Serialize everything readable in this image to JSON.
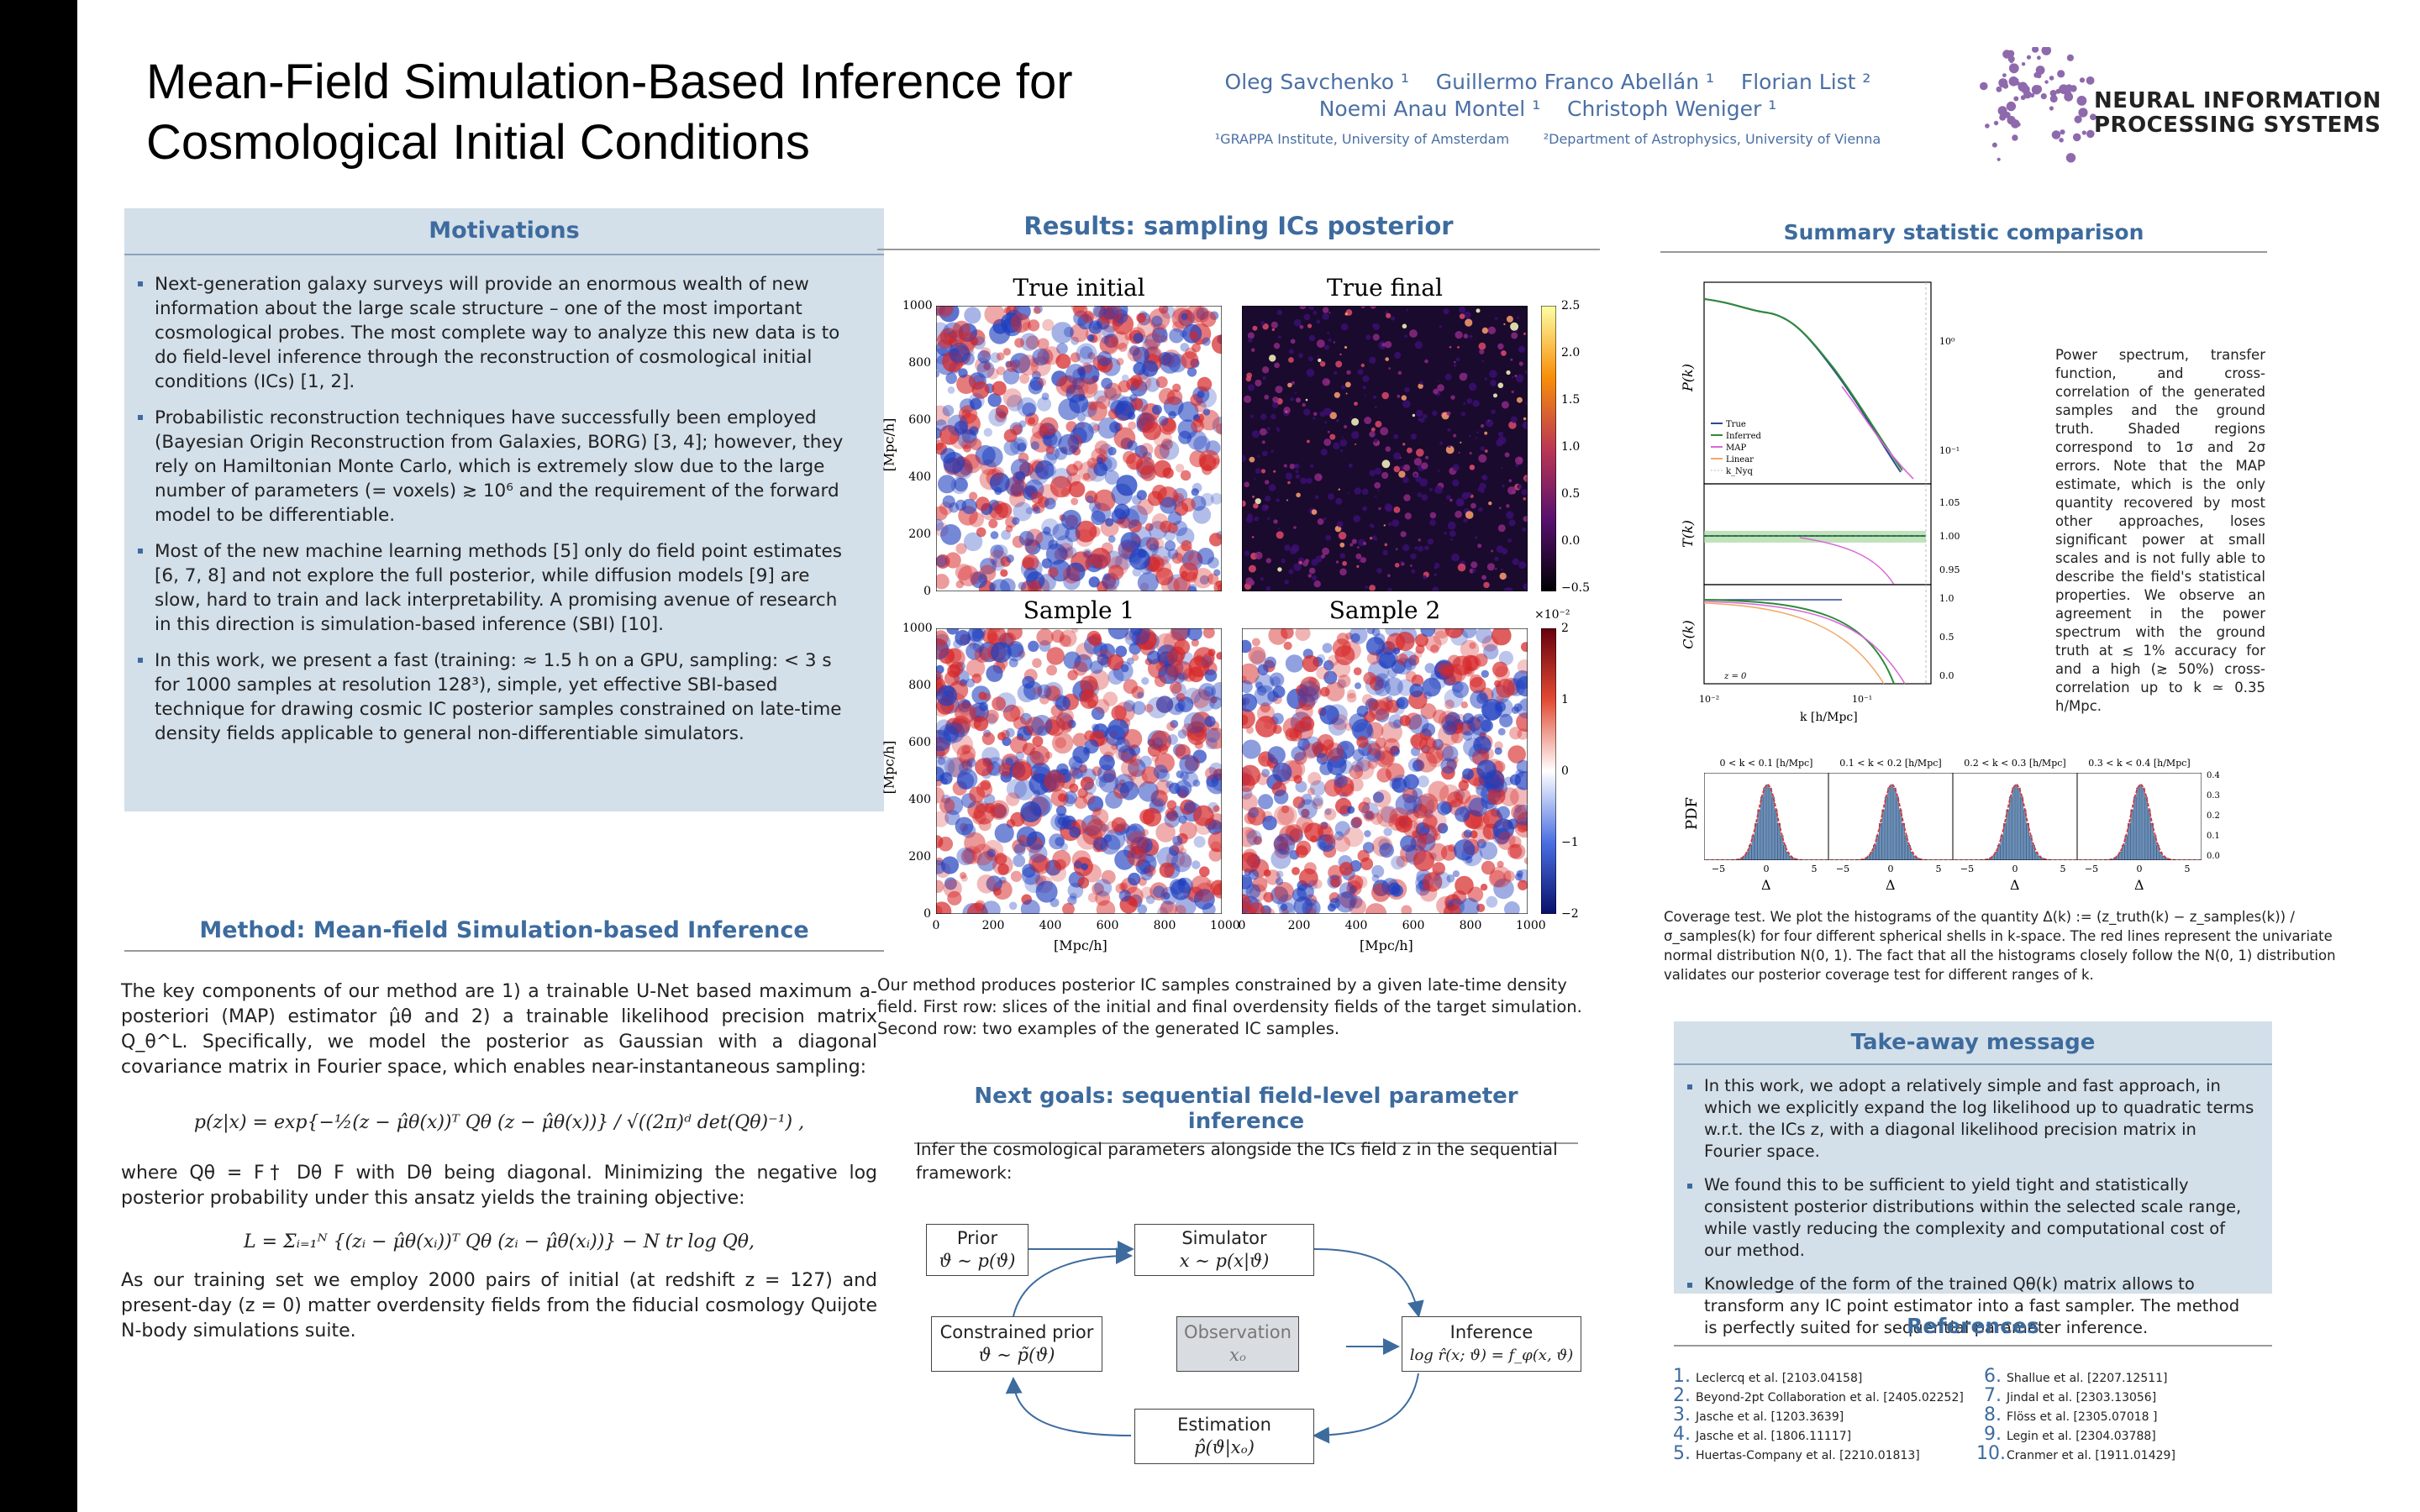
{
  "header": {
    "title_line1": "Mean-Field Simulation-Based Inference for",
    "title_line2": "Cosmological Initial Conditions",
    "authors_line1": "Oleg Savchenko ¹    Guillermo Franco Abellán ¹    Florian List ²",
    "authors_line2": "Noemi Anau Montel ¹    Christoph Weniger ¹",
    "affiliations": "¹GRAPPA Institute, University of Amsterdam        ²Department of Astrophysics, University of Vienna",
    "logo_line1": "NEURAL INFORMATION",
    "logo_line2": "PROCESSING SYSTEMS",
    "logo_color": "#7b4f9e"
  },
  "motivations": {
    "heading": "Motivations",
    "bullets": [
      "Next-generation galaxy surveys will provide an enormous wealth of new information about the large scale structure – one of the most important cosmological probes. The most complete way to analyze this new data is to do field-level inference through the reconstruction of cosmological initial conditions (ICs) [1, 2].",
      "Probabilistic reconstruction techniques have successfully been employed (Bayesian Origin Reconstruction from Galaxies, BORG) [3, 4]; however, they rely on Hamiltonian Monte Carlo, which is extremely slow due to the large number of parameters (= voxels) ≳ 10⁶ and the requirement of the forward model to be differentiable.",
      "Most of the new machine learning methods [5] only do field point estimates [6, 7, 8] and not explore the full posterior, while diffusion models [9] are slow, hard to train and lack interpretability. A promising avenue of research in this direction is simulation-based inference (SBI) [10].",
      "In this work, we present a fast (training: ≈ 1.5 h on a GPU, sampling: < 3 s for 1000 samples at resolution 128³), simple, yet effective SBI-based technique for drawing cosmic IC posterior samples constrained on late-time density fields applicable to general non-differentiable simulators."
    ]
  },
  "method": {
    "heading": "Method: Mean-field Simulation-based Inference",
    "p1": "The key components of our method are 1) a trainable U-Net based maximum a-posteriori (MAP) estimator μ̂θ and 2) a trainable likelihood precision matrix Q_θ^L. Specifically, we model the posterior as Gaussian with a diagonal covariance matrix in Fourier space, which enables near-instantaneous sampling:",
    "eq1": "p(z|x) = exp{−½(z − μ̂θ(x))ᵀ Qθ (z − μ̂θ(x))} / √((2π)ᵈ det(Qθ)⁻¹) ,",
    "p2": "where Qθ = F† Dθ F with Dθ being diagonal. Minimizing the negative log posterior probability under this ansatz yields the training objective:",
    "eq2": "L = Σᵢ₌₁ᴺ {(zᵢ − μ̂θ(xᵢ))ᵀ Qθ (zᵢ − μ̂θ(xᵢ))} − N tr log Qθ,",
    "p3": "As our training set we employ 2000 pairs of initial (at redshift z = 127) and present-day (z = 0) matter overdensity fields from the fiducial cosmology Quijote N-body simulations suite."
  },
  "results": {
    "heading": "Results: sampling ICs posterior",
    "panel_titles": [
      "True initial",
      "True final",
      "Sample 1",
      "Sample 2"
    ],
    "ylabel": "[Mpc/h]",
    "xlabel": "[Mpc/h]",
    "axis_ticks": [
      "0",
      "200",
      "400",
      "600",
      "800",
      "1000"
    ],
    "cbar_top_ticks": [
      "2.5",
      "2.0",
      "1.5",
      "1.0",
      "0.5",
      "0.0",
      "−0.5"
    ],
    "cbar_bottom_ticks": [
      "2",
      "1",
      "0",
      "−1",
      "−2"
    ],
    "cbar_bottom_exp": "×10⁻²",
    "caption": "Our method produces posterior IC samples constrained by a given late-time density field. First row: slices of the initial and final overdensity fields of the target simulation. Second row: two examples of the generated IC samples."
  },
  "next_goals": {
    "heading": "Next goals: sequential field-level parameter inference",
    "intro": "Infer the cosmological parameters alongside the ICs field z in the sequential framework:",
    "nodes": {
      "prior": [
        "Prior",
        "ϑ ∼ p(ϑ)"
      ],
      "simulator": [
        "Simulator",
        "x ∼ p(x|ϑ)"
      ],
      "constrained": [
        "Constrained prior",
        "ϑ ∼ p̃(ϑ)"
      ],
      "observation": [
        "Observation",
        "xₒ"
      ],
      "inference": [
        "Inference",
        "log r̂(x; ϑ) = f_φ(x, ϑ)"
      ],
      "estimation": [
        "Estimation",
        "p̂(ϑ|xₒ)"
      ]
    }
  },
  "summary": {
    "heading": "Summary statistic comparison",
    "ylabels": [
      "P(k)",
      "T(k)",
      "C(k)"
    ],
    "xlabel": "k [h/Mpc]",
    "legend": [
      "True",
      "Inferred",
      "MAP",
      "Linear",
      "k_Nyq"
    ],
    "z_label": "z = 0",
    "right_ticks_p": [
      "10⁰",
      "10⁻¹"
    ],
    "right_ticks_t": [
      "1.05",
      "1.00",
      "0.95"
    ],
    "right_ticks_c": [
      "1.0",
      "0.5",
      "0.0"
    ],
    "x_ticks": [
      "10⁻²",
      "10⁻¹"
    ],
    "side_text": "Power spectrum, transfer function, and cross-correlation of the generated samples and the ground truth. Shaded regions correspond to 1σ and 2σ errors. Note that the MAP estimate, which is the only quantity recovered by most other approaches, loses significant power at small scales and is not fully able to describe the field's statistical properties. We observe an agreement in the power spectrum with the ground truth at ≲ 1% accuracy for and a high (≳ 50%) cross-correlation up to k ≃ 0.35 h/Mpc.",
    "hist_titles": [
      "0 < k < 0.1 [h/Mpc]",
      "0.1 < k < 0.2 [h/Mpc]",
      "0.2 < k < 0.3 [h/Mpc]",
      "0.3 < k < 0.4 [h/Mpc]"
    ],
    "hist_ylabel": "PDF",
    "hist_xlabel": "Δ",
    "hist_xticks": [
      "−5",
      "0",
      "5"
    ],
    "hist_yticks": [
      "0.4",
      "0.3",
      "0.2",
      "0.1",
      "0.0"
    ],
    "coverage_caption": "Coverage test. We plot the histograms of the quantity Δ(k) := (z_truth(k) − z_samples(k)) / σ_samples(k) for four different spherical shells in k-space. The red lines represent the univariate normal distribution N(0, 1). The fact that all the histograms closely follow the N(0, 1) distribution validates our posterior coverage test for different ranges of k."
  },
  "takeaway": {
    "heading": "Take-away message",
    "bullets": [
      "In this work, we adopt a relatively simple and fast approach, in which we explicitly expand the log likelihood up to quadratic terms w.r.t. the ICs z, with a diagonal likelihood precision matrix in Fourier space.",
      "We found this to be sufficient to yield tight and statistically consistent posterior distributions within the selected scale range, while vastly reducing the complexity and computational cost of our method.",
      "Knowledge of the form of the trained Qθ(k) matrix allows to transform any IC point estimator into a fast sampler. The method is perfectly suited for sequential parameter inference."
    ]
  },
  "references": {
    "heading": "References",
    "left": [
      {
        "n": "1.",
        "t": "Leclercq et al. [2103.04158]"
      },
      {
        "n": "2.",
        "t": "Beyond-2pt Collaboration et al. [2405.02252]"
      },
      {
        "n": "3.",
        "t": "Jasche et al. [1203.3639]"
      },
      {
        "n": "4.",
        "t": "Jasche et al. [1806.11117]"
      },
      {
        "n": "5.",
        "t": "Huertas-Company et al. [2210.01813]"
      }
    ],
    "right": [
      {
        "n": "6.",
        "t": "Shallue et al. [2207.12511]"
      },
      {
        "n": "7.",
        "t": "Jindal et al. [2303.13056]"
      },
      {
        "n": "8.",
        "t": "Flöss et al. [2305.07018 ]"
      },
      {
        "n": "9.",
        "t": "Legin et al. [2304.03788]"
      },
      {
        "n": "10.",
        "t": "Cranmer et al. [1911.01429]"
      }
    ]
  },
  "colors": {
    "accent": "#3d6b9e",
    "section_bg": "#d3dfe9",
    "diverging_red": "#d62728",
    "diverging_blue": "#1f3fbf",
    "true_line": "#2b4a8b",
    "inferred_line": "#2e8b3a",
    "map_line": "#d966d6",
    "linear_line": "#f0a868"
  }
}
